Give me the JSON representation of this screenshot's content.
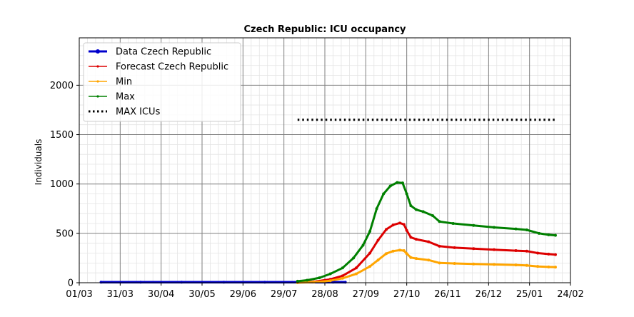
{
  "chart_data": {
    "type": "line",
    "title": "Czech Republic: ICU occupancy",
    "xlabel": "",
    "ylabel": "Individuals",
    "x_axis": {
      "range": [
        "2020-03-01",
        "2021-02-24"
      ],
      "tick_dates": [
        "2020-03-01",
        "2020-03-31",
        "2020-04-30",
        "2020-05-30",
        "2020-06-29",
        "2020-07-29",
        "2020-08-28",
        "2020-09-27",
        "2020-10-27",
        "2020-11-26",
        "2020-12-26",
        "2021-01-25",
        "2021-02-24"
      ],
      "tick_labels": [
        "01/03",
        "31/03",
        "30/04",
        "30/05",
        "29/06",
        "29/07",
        "28/08",
        "27/09",
        "27/10",
        "26/11",
        "26/12",
        "25/01",
        "24/02"
      ]
    },
    "y_axis": {
      "range": [
        0,
        2480
      ],
      "ticks": [
        0,
        500,
        1000,
        1500,
        2000
      ],
      "tick_labels": [
        "0",
        "500",
        "1000",
        "1500",
        "2000"
      ]
    },
    "grid": true,
    "minor_grid": true,
    "legend": {
      "placement": "upper-left",
      "entries": [
        {
          "label": "Data Czech Republic",
          "color": "#0000cc",
          "style": "solid-marker"
        },
        {
          "label": "Forecast Czech Republic",
          "color": "#dd0000",
          "style": "solid-marker"
        },
        {
          "label": "Min",
          "color": "#ffa500",
          "style": "solid-marker"
        },
        {
          "label": "Max",
          "color": "#008000",
          "style": "solid-marker"
        },
        {
          "label": "MAX ICUs",
          "color": "#000000",
          "style": "dotted"
        }
      ]
    },
    "series": [
      {
        "name": "Data Czech Republic",
        "color": "#0000cc",
        "points": [
          [
            "2020-03-17",
            5
          ],
          [
            "2020-04-15",
            5
          ],
          [
            "2020-05-15",
            5
          ],
          [
            "2020-06-15",
            5
          ],
          [
            "2020-07-15",
            5
          ],
          [
            "2020-08-08",
            5
          ],
          [
            "2020-09-03",
            5
          ],
          [
            "2020-09-12",
            5
          ]
        ]
      },
      {
        "name": "Forecast Czech Republic",
        "color": "#dd0000",
        "points": [
          [
            "2020-08-08",
            2
          ],
          [
            "2020-08-20",
            10
          ],
          [
            "2020-09-01",
            35
          ],
          [
            "2020-09-10",
            70
          ],
          [
            "2020-09-20",
            150
          ],
          [
            "2020-09-30",
            300
          ],
          [
            "2020-10-06",
            430
          ],
          [
            "2020-10-12",
            540
          ],
          [
            "2020-10-17",
            585
          ],
          [
            "2020-10-22",
            605
          ],
          [
            "2020-10-25",
            590
          ],
          [
            "2020-10-27",
            530
          ],
          [
            "2020-10-30",
            460
          ],
          [
            "2020-11-03",
            440
          ],
          [
            "2020-11-12",
            415
          ],
          [
            "2020-11-20",
            370
          ],
          [
            "2020-12-01",
            355
          ],
          [
            "2020-12-15",
            345
          ],
          [
            "2020-12-30",
            335
          ],
          [
            "2021-01-15",
            325
          ],
          [
            "2021-01-23",
            320
          ],
          [
            "2021-01-31",
            300
          ],
          [
            "2021-02-08",
            290
          ],
          [
            "2021-02-13",
            285
          ]
        ]
      },
      {
        "name": "Min",
        "color": "#ffa500",
        "points": [
          [
            "2020-08-08",
            1
          ],
          [
            "2020-08-20",
            6
          ],
          [
            "2020-09-01",
            20
          ],
          [
            "2020-09-10",
            45
          ],
          [
            "2020-09-20",
            90
          ],
          [
            "2020-09-30",
            165
          ],
          [
            "2020-10-06",
            230
          ],
          [
            "2020-10-12",
            295
          ],
          [
            "2020-10-17",
            320
          ],
          [
            "2020-10-22",
            330
          ],
          [
            "2020-10-25",
            325
          ],
          [
            "2020-10-27",
            295
          ],
          [
            "2020-10-30",
            255
          ],
          [
            "2020-11-03",
            245
          ],
          [
            "2020-11-12",
            230
          ],
          [
            "2020-11-20",
            200
          ],
          [
            "2020-12-01",
            195
          ],
          [
            "2020-12-15",
            190
          ],
          [
            "2020-12-30",
            185
          ],
          [
            "2021-01-15",
            180
          ],
          [
            "2021-01-23",
            175
          ],
          [
            "2021-01-31",
            165
          ],
          [
            "2021-02-08",
            160
          ],
          [
            "2021-02-13",
            158
          ]
        ]
      },
      {
        "name": "Max",
        "color": "#008000",
        "points": [
          [
            "2020-08-08",
            15
          ],
          [
            "2020-08-15",
            25
          ],
          [
            "2020-08-24",
            50
          ],
          [
            "2020-09-01",
            90
          ],
          [
            "2020-09-10",
            150
          ],
          [
            "2020-09-18",
            250
          ],
          [
            "2020-09-25",
            380
          ],
          [
            "2020-09-30",
            520
          ],
          [
            "2020-10-05",
            750
          ],
          [
            "2020-10-10",
            900
          ],
          [
            "2020-10-15",
            980
          ],
          [
            "2020-10-20",
            1015
          ],
          [
            "2020-10-24",
            1010
          ],
          [
            "2020-10-27",
            900
          ],
          [
            "2020-10-30",
            780
          ],
          [
            "2020-11-03",
            740
          ],
          [
            "2020-11-08",
            720
          ],
          [
            "2020-11-15",
            680
          ],
          [
            "2020-11-20",
            620
          ],
          [
            "2020-11-30",
            600
          ],
          [
            "2020-12-15",
            580
          ],
          [
            "2020-12-30",
            560
          ],
          [
            "2021-01-15",
            545
          ],
          [
            "2021-01-23",
            535
          ],
          [
            "2021-02-01",
            500
          ],
          [
            "2021-02-08",
            485
          ],
          [
            "2021-02-13",
            480
          ]
        ]
      },
      {
        "name": "MAX ICUs",
        "color": "#000000",
        "style": "dotted",
        "points": [
          [
            "2020-08-08",
            1650
          ],
          [
            "2021-02-13",
            1650
          ]
        ]
      }
    ]
  }
}
